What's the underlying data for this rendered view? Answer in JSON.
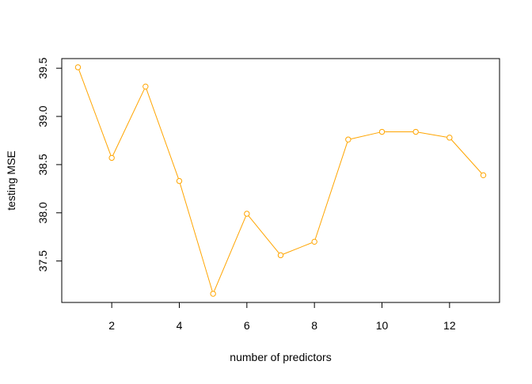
{
  "chart_data": {
    "type": "line",
    "title": "",
    "xlabel": "number of predictors",
    "ylabel": "testing MSE",
    "x": [
      1,
      2,
      3,
      4,
      5,
      6,
      7,
      8,
      9,
      10,
      11,
      12,
      13
    ],
    "series": [
      {
        "values": [
          39.51,
          38.57,
          39.31,
          38.33,
          37.16,
          37.99,
          37.56,
          37.7,
          38.76,
          38.84,
          38.84,
          38.78,
          38.39
        ],
        "color": "#FFA500",
        "marker": "open-circle"
      }
    ],
    "xlim": [
      0.52,
      13.48
    ],
    "ylim": [
      37.07,
      39.6
    ],
    "x_ticks": [
      2,
      4,
      6,
      8,
      10,
      12
    ],
    "y_ticks": [
      37.5,
      38.0,
      38.5,
      39.0,
      39.5
    ],
    "x_tick_labels": [
      "2",
      "4",
      "6",
      "8",
      "10",
      "12"
    ],
    "y_tick_labels": [
      "37.5",
      "38.0",
      "38.5",
      "39.0",
      "39.5"
    ],
    "grid": false,
    "legend": "none"
  }
}
